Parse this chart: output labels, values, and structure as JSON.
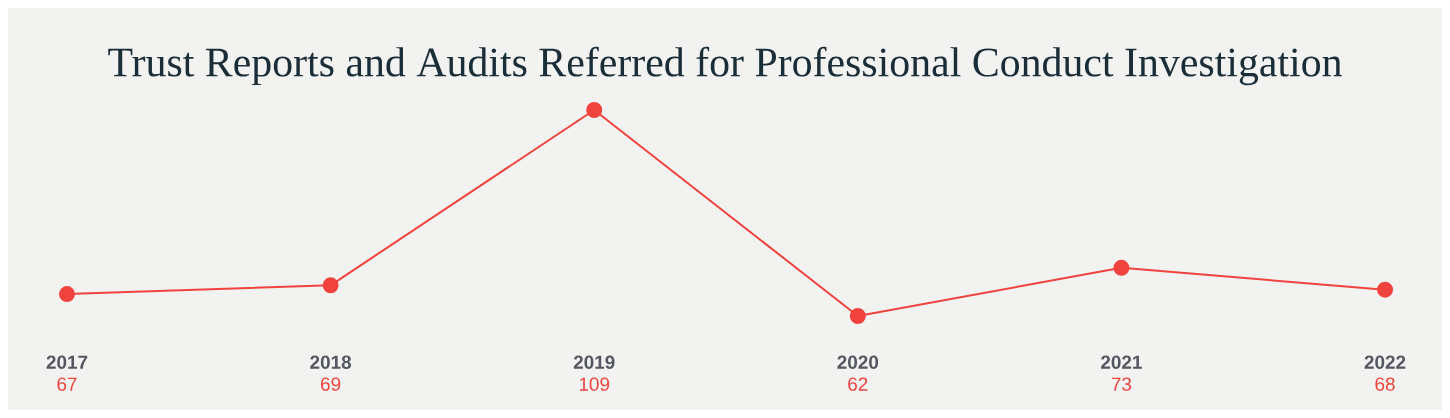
{
  "chart_data": {
    "type": "line",
    "title": "Trust Reports and Audits Referred for Professional Conduct Investigation",
    "categories": [
      "2017",
      "2018",
      "2019",
      "2020",
      "2021",
      "2022"
    ],
    "values": [
      67,
      69,
      109,
      62,
      73,
      68
    ],
    "color": "#f0433e",
    "data_labels": true,
    "marker": "circle",
    "line_style": "solid"
  }
}
